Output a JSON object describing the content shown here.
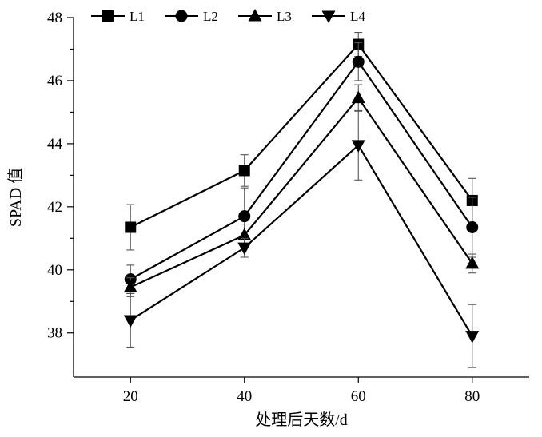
{
  "chart_data": {
    "type": "line",
    "xlabel": "处理后天数/d",
    "ylabel": "SPAD 值",
    "x": [
      20,
      40,
      60,
      80
    ],
    "xticks": [
      20,
      40,
      60,
      80
    ],
    "xlim": [
      10,
      90
    ],
    "yticks": [
      38,
      40,
      42,
      44,
      46,
      48
    ],
    "ylim": [
      36.6,
      48
    ],
    "grid": false,
    "legend": "top",
    "series": [
      {
        "name": "L1",
        "marker": "square",
        "color": "#000000",
        "values": [
          41.35,
          43.15,
          47.15,
          42.2
        ],
        "errors": [
          0.72,
          0.5,
          0.38,
          0.7
        ]
      },
      {
        "name": "L2",
        "marker": "circle",
        "color": "#000000",
        "values": [
          39.7,
          41.7,
          46.6,
          41.35
        ],
        "errors": [
          0.45,
          0.9,
          0.6,
          0.95
        ]
      },
      {
        "name": "L3",
        "marker": "triangle-up",
        "color": "#000000",
        "values": [
          39.45,
          41.1,
          45.45,
          40.2
        ],
        "errors": [
          0.3,
          0.35,
          0.42,
          0.3
        ]
      },
      {
        "name": "L4",
        "marker": "triangle-down",
        "color": "#000000",
        "values": [
          38.4,
          40.7,
          43.95,
          37.9
        ],
        "errors": [
          0.85,
          0.3,
          1.1,
          1.0
        ]
      }
    ]
  }
}
